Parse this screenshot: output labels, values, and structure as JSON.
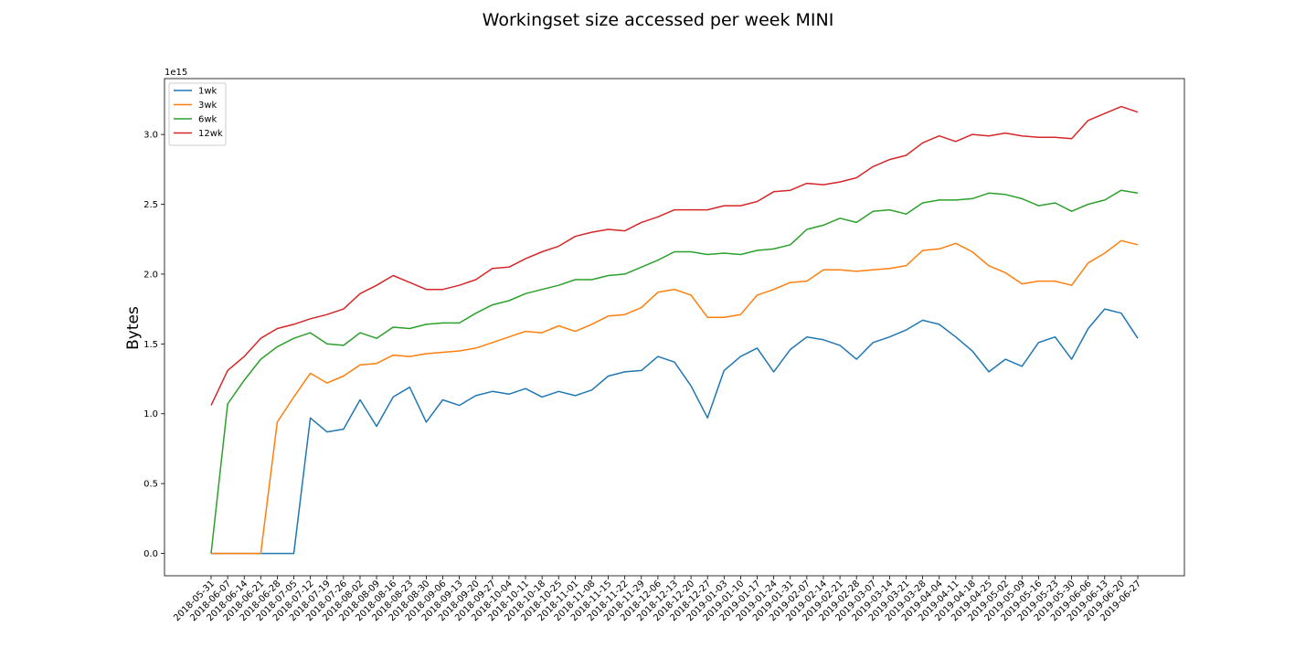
{
  "chart_data": {
    "type": "line",
    "title": "Workingset size accessed per week MINI",
    "xlabel": "",
    "ylabel": "Bytes",
    "y_offset_label": "1e15",
    "ylim": [
      -0.16,
      3.4
    ],
    "yticks": [
      0.0,
      0.5,
      1.0,
      1.5,
      2.0,
      2.5,
      3.0
    ],
    "ytick_labels": [
      "0.0",
      "0.5",
      "1.0",
      "1.5",
      "2.0",
      "2.5",
      "3.0"
    ],
    "legend_position": "upper left",
    "grid": false,
    "x": [
      "2018-05-31",
      "2018-06-07",
      "2018-06-14",
      "2018-06-21",
      "2018-06-28",
      "2018-07-05",
      "2018-07-12",
      "2018-07-19",
      "2018-07-26",
      "2018-08-02",
      "2018-08-09",
      "2018-08-16",
      "2018-08-23",
      "2018-08-30",
      "2018-09-06",
      "2018-09-13",
      "2018-09-20",
      "2018-09-27",
      "2018-10-04",
      "2018-10-11",
      "2018-10-18",
      "2018-10-25",
      "2018-11-01",
      "2018-11-08",
      "2018-11-15",
      "2018-11-22",
      "2018-11-29",
      "2018-12-06",
      "2018-12-13",
      "2018-12-20",
      "2018-12-27",
      "2019-01-03",
      "2019-01-10",
      "2019-01-17",
      "2019-01-24",
      "2019-01-31",
      "2019-02-07",
      "2019-02-14",
      "2019-02-21",
      "2019-02-28",
      "2019-03-07",
      "2019-03-14",
      "2019-03-21",
      "2019-03-28",
      "2019-04-04",
      "2019-04-11",
      "2019-04-18",
      "2019-04-25",
      "2019-05-02",
      "2019-05-09",
      "2019-05-16",
      "2019-05-23",
      "2019-05-30",
      "2019-06-06",
      "2019-06-13",
      "2019-06-20",
      "2019-06-27"
    ],
    "series": [
      {
        "name": "1wk",
        "color": "#1f77b4",
        "values": [
          0,
          0,
          0,
          0,
          0,
          0,
          0.97,
          0.87,
          0.89,
          1.1,
          0.91,
          1.12,
          1.19,
          0.94,
          1.1,
          1.06,
          1.13,
          1.16,
          1.14,
          1.18,
          1.12,
          1.16,
          1.13,
          1.17,
          1.27,
          1.3,
          1.31,
          1.41,
          1.37,
          1.2,
          0.97,
          1.31,
          1.41,
          1.47,
          1.3,
          1.46,
          1.55,
          1.53,
          1.49,
          1.39,
          1.51,
          1.55,
          1.6,
          1.67,
          1.64,
          1.55,
          1.45,
          1.3,
          1.39,
          1.34,
          1.51,
          1.55,
          1.39,
          1.61,
          1.75,
          1.72,
          1.54
        ]
      },
      {
        "name": "3wk",
        "color": "#ff7f0e",
        "values": [
          0,
          0,
          0,
          0,
          0.94,
          1.12,
          1.29,
          1.22,
          1.27,
          1.35,
          1.36,
          1.42,
          1.41,
          1.43,
          1.44,
          1.45,
          1.47,
          1.51,
          1.55,
          1.59,
          1.58,
          1.63,
          1.59,
          1.64,
          1.7,
          1.71,
          1.76,
          1.87,
          1.89,
          1.85,
          1.69,
          1.69,
          1.71,
          1.85,
          1.89,
          1.94,
          1.95,
          2.03,
          2.03,
          2.02,
          2.03,
          2.04,
          2.06,
          2.17,
          2.18,
          2.22,
          2.16,
          2.06,
          2.01,
          1.93,
          1.95,
          1.95,
          1.92,
          2.08,
          2.15,
          2.24,
          2.21
        ]
      },
      {
        "name": "6wk",
        "color": "#2ca02c",
        "values": [
          0,
          1.07,
          1.24,
          1.39,
          1.48,
          1.54,
          1.58,
          1.5,
          1.49,
          1.58,
          1.54,
          1.62,
          1.61,
          1.64,
          1.65,
          1.65,
          1.72,
          1.78,
          1.81,
          1.86,
          1.89,
          1.92,
          1.96,
          1.96,
          1.99,
          2.0,
          2.05,
          2.1,
          2.16,
          2.16,
          2.14,
          2.15,
          2.14,
          2.17,
          2.18,
          2.21,
          2.32,
          2.35,
          2.4,
          2.37,
          2.45,
          2.46,
          2.43,
          2.51,
          2.53,
          2.53,
          2.54,
          2.58,
          2.57,
          2.54,
          2.49,
          2.51,
          2.45,
          2.5,
          2.53,
          2.6,
          2.58
        ]
      },
      {
        "name": "12wk",
        "color": "#d62728",
        "values": [
          1.06,
          1.31,
          1.41,
          1.54,
          1.61,
          1.64,
          1.68,
          1.71,
          1.75,
          1.86,
          1.92,
          1.99,
          1.94,
          1.89,
          1.89,
          1.92,
          1.96,
          2.04,
          2.05,
          2.11,
          2.16,
          2.2,
          2.27,
          2.3,
          2.32,
          2.31,
          2.37,
          2.41,
          2.46,
          2.46,
          2.46,
          2.49,
          2.49,
          2.52,
          2.59,
          2.6,
          2.65,
          2.64,
          2.66,
          2.69,
          2.77,
          2.82,
          2.85,
          2.94,
          2.99,
          2.95,
          3.0,
          2.99,
          3.01,
          2.99,
          2.98,
          2.98,
          2.97,
          3.1,
          3.15,
          3.2,
          3.16
        ]
      }
    ]
  }
}
